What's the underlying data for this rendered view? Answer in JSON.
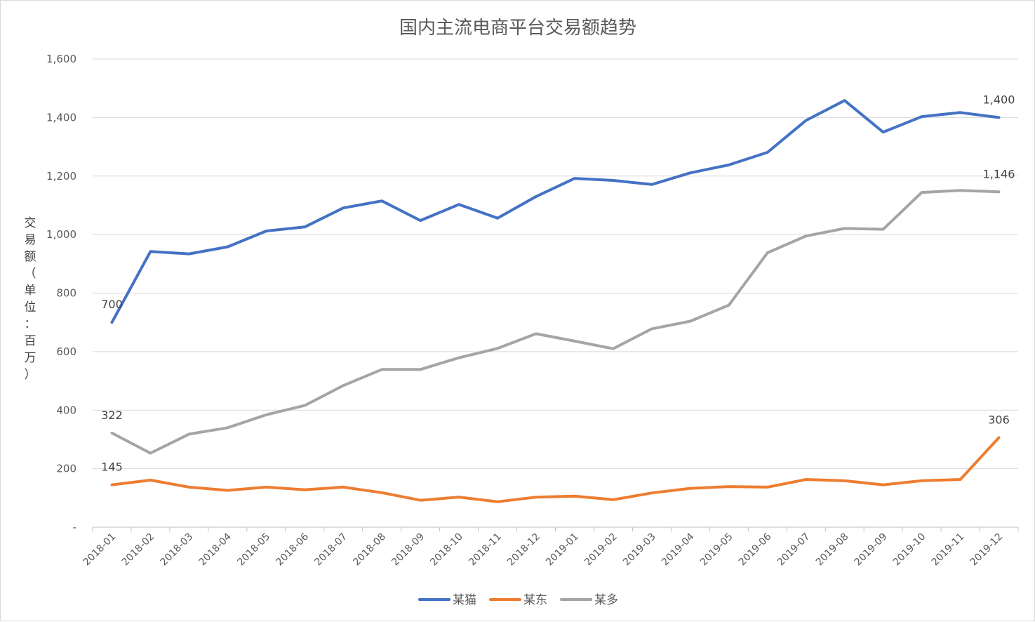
{
  "chart_data": {
    "type": "line",
    "title": "国内主流电商平台交易额趋势",
    "ylabel": "交易额（单位：百万）",
    "xlabel": "",
    "ylim": [
      0,
      1600
    ],
    "yticks": [
      0,
      200,
      400,
      600,
      800,
      1000,
      1200,
      1400,
      1600
    ],
    "ytick_labels": [
      "-",
      "200",
      "400",
      "600",
      "800",
      "1,000",
      "1,200",
      "1,400",
      "1,600"
    ],
    "grid": true,
    "legend_position": "bottom",
    "categories": [
      "2018-01",
      "2018-02",
      "2018-03",
      "2018-04",
      "2018-05",
      "2018-06",
      "2018-07",
      "2018-08",
      "2018-09",
      "2018-10",
      "2018-11",
      "2018-12",
      "2019-01",
      "2019-02",
      "2019-03",
      "2019-04",
      "2019-05",
      "2019-06",
      "2019-07",
      "2019-08",
      "2019-09",
      "2019-10",
      "2019-11",
      "2019-12"
    ],
    "series": [
      {
        "name": "某猫",
        "color": "#4472c4",
        "values": [
          700,
          942,
          934,
          958,
          1012,
          1026,
          1091,
          1115,
          1048,
          1103,
          1056,
          1130,
          1192,
          1185,
          1171,
          1211,
          1238,
          1281,
          1390,
          1458,
          1350,
          1403,
          1417,
          1400
        ],
        "data_labels": [
          {
            "index": 0,
            "text": "700"
          },
          {
            "index": 23,
            "text": "1,400"
          }
        ]
      },
      {
        "name": "某东",
        "color": "#ed7d31",
        "values": [
          145,
          161,
          137,
          126,
          137,
          128,
          137,
          118,
          92,
          103,
          87,
          103,
          106,
          94,
          117,
          133,
          139,
          137,
          163,
          159,
          145,
          159,
          163,
          306
        ],
        "data_labels": [
          {
            "index": 0,
            "text": "145"
          },
          {
            "index": 23,
            "text": "306"
          }
        ]
      },
      {
        "name": "某多",
        "color": "#a5a5a5",
        "values": [
          322,
          253,
          318,
          340,
          384,
          416,
          484,
          539,
          539,
          579,
          611,
          661,
          636,
          610,
          678,
          704,
          759,
          938,
          995,
          1021,
          1018,
          1144,
          1151,
          1146
        ],
        "data_labels": [
          {
            "index": 0,
            "text": "322"
          },
          {
            "index": 23,
            "text": "1,146"
          }
        ]
      }
    ]
  }
}
